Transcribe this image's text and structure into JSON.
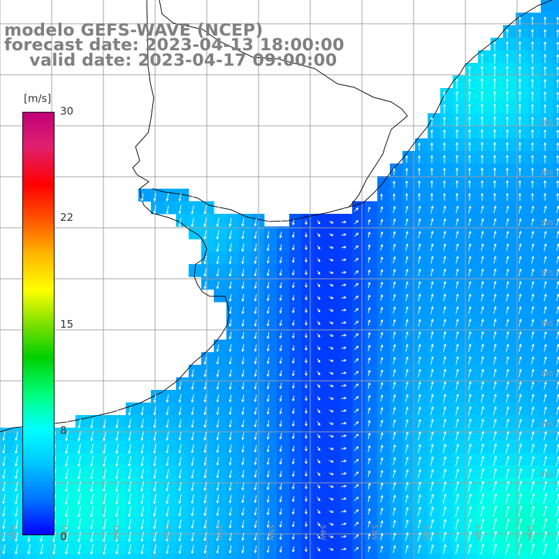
{
  "title": {
    "line1": "modelo GEFS-WAVE (NCEP)",
    "line2": "forecast date: 2023-04-13 18:00:00",
    "line3": "valid date: 2023-04-17 09:00:00"
  },
  "colorbar": {
    "unit": "[m/s]",
    "ticks": [
      "30",
      "22",
      "15",
      "8",
      "0"
    ],
    "colors": [
      "#0000ff",
      "#0070ff",
      "#00c8ff",
      "#00ffff",
      "#00ff80",
      "#00d000",
      "#80e000",
      "#ffff00",
      "#ffb000",
      "#ff5000",
      "#ff0000",
      "#e0206e",
      "#c00078"
    ]
  },
  "map": {
    "lon_labels": [
      "60W",
      "59W",
      "58W",
      "57W",
      "56W",
      "55W",
      "54W",
      "53W",
      "52W",
      "51W",
      "50W"
    ],
    "lat_labels": [
      "34S",
      "35S",
      "36S",
      "37S",
      "38S",
      "39S",
      "40S",
      "41S"
    ],
    "land_color": "#ffffff",
    "grid_color": "#a0a0a0",
    "arrow_color": "#ffffff"
  }
}
